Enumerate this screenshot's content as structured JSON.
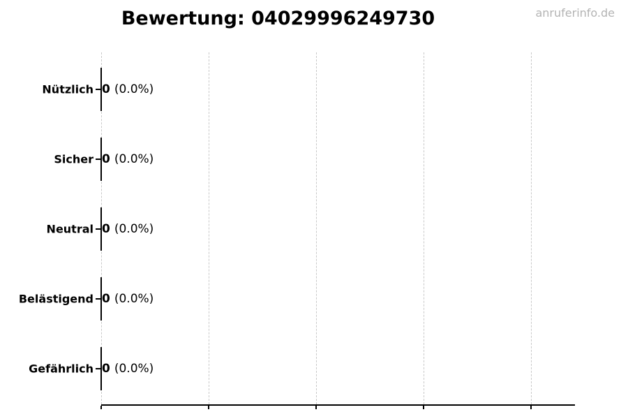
{
  "title": "Bewertung: 04029996249730",
  "watermark": "anruferinfo.de",
  "chart_data": {
    "type": "bar",
    "orientation": "horizontal",
    "title": "Bewertung: 04029996249730",
    "categories": [
      "Nützlich",
      "Sicher",
      "Neutral",
      "Belästigend",
      "Gefährlich"
    ],
    "values": [
      0,
      0,
      0,
      0,
      0
    ],
    "percentages": [
      0.0,
      0.0,
      0.0,
      0.0,
      0.0
    ],
    "xlabel": "",
    "ylabel": "",
    "legend": "none",
    "grid": "vertical-dashed",
    "x_tick_count": 5,
    "x_tick_labels_visible": false,
    "rows": [
      {
        "category": "Nützlich",
        "count": "0",
        "percent": "(0.0%)"
      },
      {
        "category": "Sicher",
        "count": "0",
        "percent": "(0.0%)"
      },
      {
        "category": "Neutral",
        "count": "0",
        "percent": "(0.0%)"
      },
      {
        "category": "Belästigend",
        "count": "0",
        "percent": "(0.0%)"
      },
      {
        "category": "Gefährlich",
        "count": "0",
        "percent": "(0.0%)"
      }
    ]
  },
  "colors": {
    "background": "#ffffff",
    "text": "#000000",
    "axis": "#000000",
    "grid": "#c8c8c8",
    "watermark": "#b3b3b3"
  }
}
